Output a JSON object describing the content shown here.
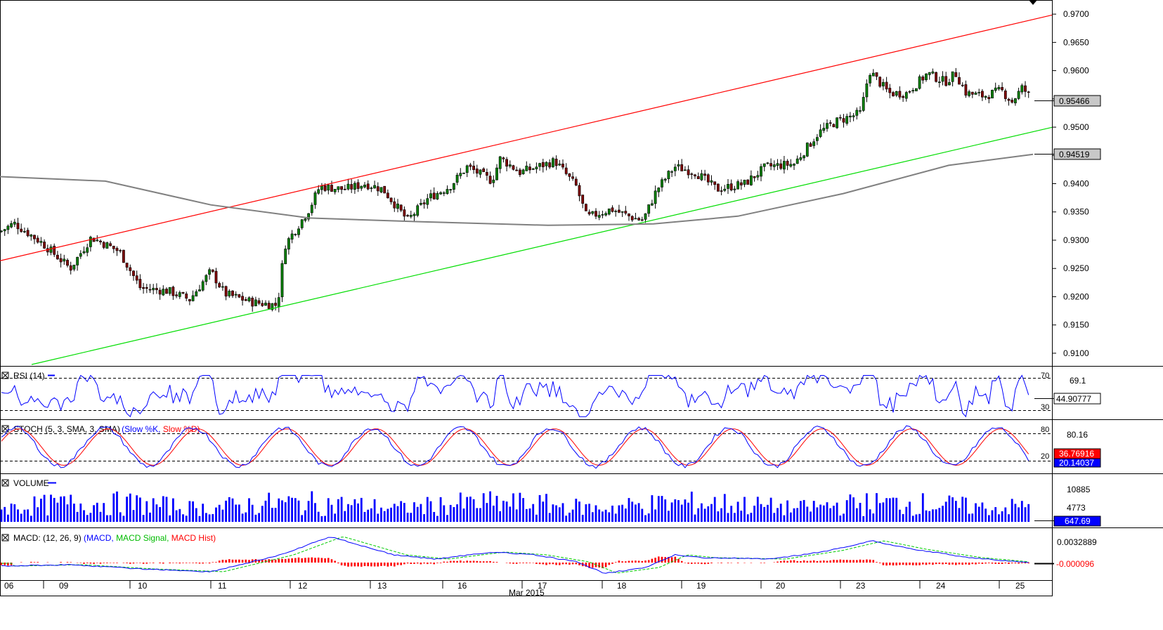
{
  "chart_data": {
    "type": "candlestick",
    "x_labels": [
      "06",
      "09",
      "10",
      "11",
      "12",
      "13",
      "16",
      "17",
      "18",
      "19",
      "20",
      "23",
      "24",
      "25"
    ],
    "x_caption": "Mar 2015",
    "price": {
      "yticks": [
        "0.9700",
        "0.9650",
        "0.9600",
        "0.9550",
        "0.9500",
        "0.9450",
        "0.9400",
        "0.9350",
        "0.9300",
        "0.9250",
        "0.9200",
        "0.9150",
        "0.9100"
      ],
      "ylim": [
        0.908,
        0.9725
      ],
      "last_price_label": "0.95466",
      "ma_label": "0.94519",
      "upper_trendline_color": "#ff0000",
      "lower_trendline_color": "#00dd00",
      "ma_color": "#808080",
      "candle_up_color": "#008000",
      "candle_down_color": "#800000"
    },
    "rsi": {
      "title": "RSI (14)",
      "levels": [
        "70",
        "30"
      ],
      "level_value": "69.1",
      "current": "44.90777",
      "color": "#0000ff"
    },
    "stoch": {
      "title_prefix": "STOCH (5, 3, SMA, 3, SMA)",
      "k_label": "Slow %K,",
      "d_label": "Slow %D)",
      "levels": [
        "80",
        "20"
      ],
      "level_value": "80.16",
      "k_current": "20.14037",
      "d_current": "36.76916",
      "k_color": "#0000ff",
      "d_color": "#ff0000"
    },
    "volume": {
      "title": "VOLUME",
      "ticks": [
        "10885",
        "4773"
      ],
      "current": "647.69",
      "color": "#0000ff"
    },
    "macd": {
      "title_prefix": "MACD: (12, 26, 9)",
      "macd_label": "MACD,",
      "signal_label": "MACD Signal,",
      "hist_label": "MACD Hist)",
      "tick": "0.0032889",
      "current": "-0.000096",
      "macd_color": "#0000ff",
      "signal_color": "#00cc00",
      "hist_color": "#ff0000"
    }
  }
}
